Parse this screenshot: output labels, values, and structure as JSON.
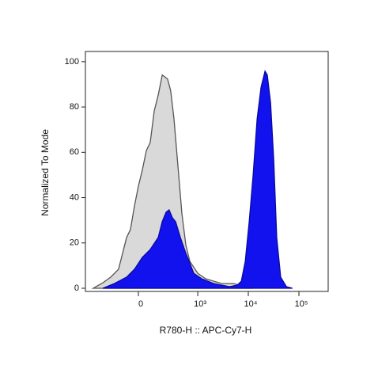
{
  "chart_data": {
    "type": "area",
    "x_label": "R780-H :: APC-Cy7-H",
    "y_label": "Normalized To Mode",
    "xscale": {
      "type": "arcsinh",
      "cofactor": 135
    },
    "xlim": [
      -745,
      378000
    ],
    "xticks": [
      0,
      {
        "value": 1000,
        "label": "10³"
      },
      {
        "value": 10000,
        "label": "10⁴"
      },
      {
        "value": 100000,
        "label": "10⁵"
      }
    ],
    "ylim": [
      -1.4,
      104.5
    ],
    "yticks": [
      0,
      20,
      40,
      60,
      80,
      100
    ],
    "series": [
      {
        "color": "#d9d9d9",
        "stroke": "#555555",
        "x": [
          -516,
          -327,
          -219,
          -139,
          -76,
          -50,
          -24,
          0,
          24,
          50,
          76,
          106,
          139,
          177,
          201,
          237,
          278,
          327,
          397,
          479,
          578,
          694,
          1000,
          1431,
          2957,
          5076,
          8708,
          12488
        ],
        "values": [
          0,
          2.4,
          4.9,
          8.4,
          22.4,
          25.9,
          36.4,
          45.1,
          52.1,
          60.8,
          64.3,
          78.3,
          85.3,
          94.1,
          93.4,
          92.3,
          87.1,
          74.8,
          53.8,
          32.9,
          18.9,
          11.9,
          6.6,
          4.2,
          2.1,
          2.1,
          0.7,
          0
        ]
      },
      {
        "color": "#1212ee",
        "stroke": "#0a0aa0",
        "x": [
          -327,
          -177,
          -76,
          -24,
          24,
          76,
          139,
          177,
          219,
          256,
          303,
          354,
          446,
          578,
          833,
          1196,
          2063,
          4239,
          6075,
          7277,
          8708,
          10422,
          12488,
          14945,
          17888,
          21411,
          23706,
          27540,
          31671,
          36423,
          43605,
          56565,
          74385
        ],
        "values": [
          0,
          2.1,
          4.9,
          8.4,
          13.6,
          17.1,
          22.4,
          29.4,
          33.6,
          34.6,
          31.1,
          29.4,
          22.4,
          15.4,
          6.6,
          4.2,
          2.1,
          0.7,
          1.4,
          3.1,
          11.9,
          29.4,
          50.3,
          74.8,
          88.8,
          95.8,
          94.1,
          81.8,
          57.3,
          22.4,
          4.9,
          0.7,
          0
        ]
      }
    ]
  }
}
